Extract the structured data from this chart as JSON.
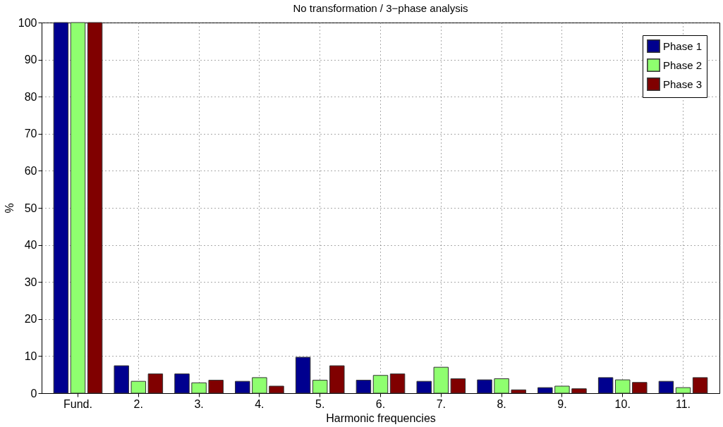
{
  "chart_data": {
    "type": "bar",
    "title": "No transformation / 3−phase analysis",
    "xlabel": "Harmonic frequencies",
    "ylabel": "%",
    "categories": [
      "Fund.",
      "2.",
      "3.",
      "4.",
      "5.",
      "6.",
      "7.",
      "8.",
      "9.",
      "10.",
      "11."
    ],
    "series": [
      {
        "name": "Phase 1",
        "color": "#00008f",
        "values": [
          100,
          7.4,
          5.2,
          3.2,
          9.7,
          3.5,
          3.2,
          3.6,
          1.5,
          4.2,
          3.2
        ]
      },
      {
        "name": "Phase 2",
        "color": "#8fff6f",
        "values": [
          100,
          3.2,
          2.8,
          4.2,
          3.5,
          4.8,
          7.0,
          3.9,
          1.9,
          3.6,
          1.5
        ]
      },
      {
        "name": "Phase 3",
        "color": "#800000",
        "values": [
          100,
          5.2,
          3.5,
          1.9,
          7.4,
          5.2,
          3.9,
          0.9,
          1.2,
          2.9,
          4.2
        ]
      }
    ],
    "ylim": [
      0,
      100
    ],
    "yticks": [
      0,
      10,
      20,
      30,
      40,
      50,
      60,
      70,
      80,
      90,
      100
    ],
    "grid": true,
    "legend": "top right"
  }
}
